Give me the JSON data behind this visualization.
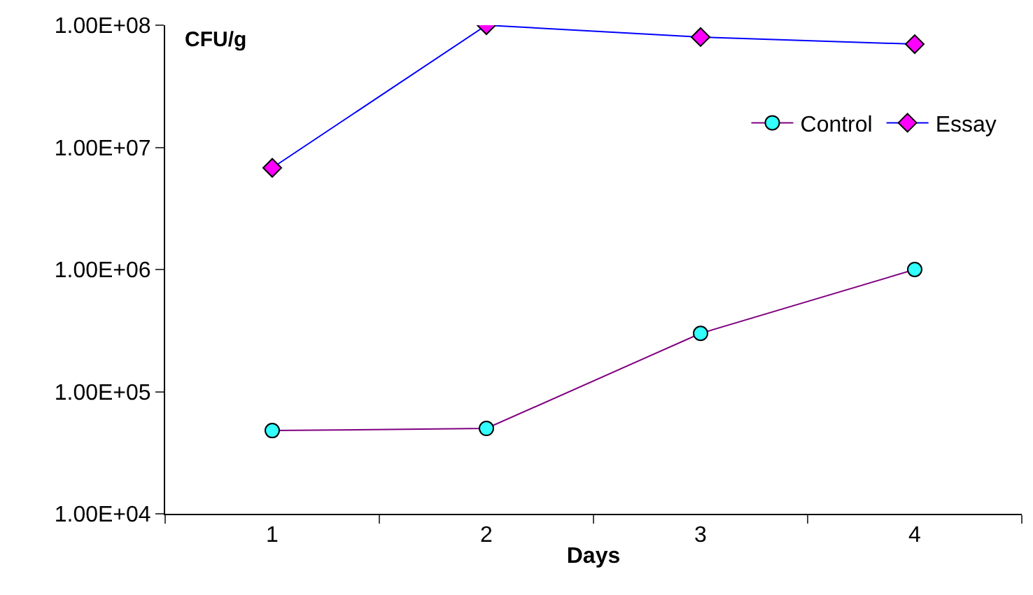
{
  "chart_data": {
    "type": "line",
    "xlabel": "Days",
    "ylabel": "CFU/g",
    "categories": [
      "1",
      "2",
      "3",
      "4"
    ],
    "series": [
      {
        "name": "Control",
        "color": "#800080",
        "colors": [
          "#33ffff",
          "#33ffff",
          "#33ffff",
          "#33ffff"
        ],
        "marker": "circle",
        "values": [
          48000,
          50000,
          300000,
          1000000
        ]
      },
      {
        "name": "Essay",
        "color": "#0000ff",
        "colors": [
          "#ff00ff",
          "#ff00ff",
          "#ff00ff",
          "#ff00ff"
        ],
        "marker": "diamond",
        "values": [
          6800000,
          100000000,
          80000000,
          70000000
        ]
      }
    ],
    "log": true,
    "ylim": [
      10000,
      100000000
    ],
    "yticks": [
      {
        "value": 10000,
        "label": "1.00E+04"
      },
      {
        "value": 100000,
        "label": "1.00E+05"
      },
      {
        "value": 1000000,
        "label": "1.00E+06"
      },
      {
        "value": 10000000,
        "label": "1.00E+07"
      },
      {
        "value": 100000000,
        "label": "1.00E+08"
      }
    ],
    "grid": false,
    "legend": "top right"
  }
}
